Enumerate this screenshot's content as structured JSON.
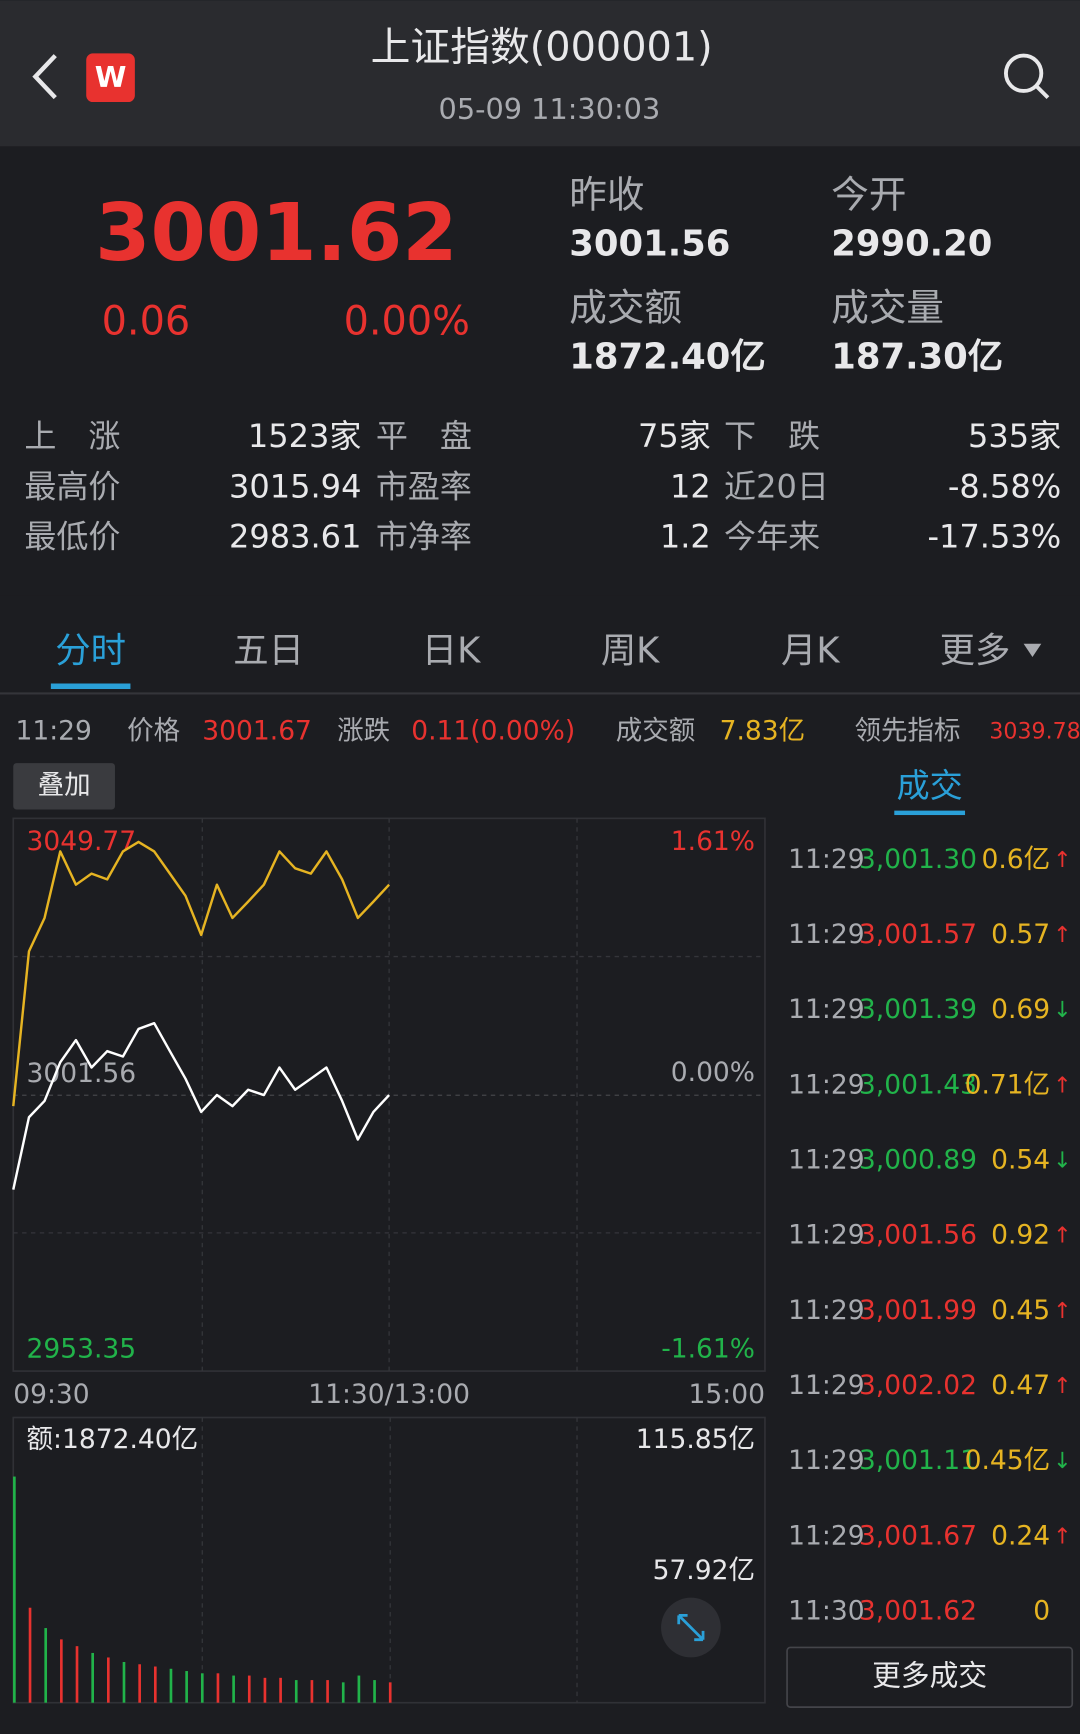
{
  "header": {
    "title": "上证指数(000001)",
    "time": "05-09 11:30:03"
  },
  "quote": {
    "price": "3001.62",
    "change": "0.06",
    "change_pct": "0.00%",
    "stats": [
      {
        "label": "昨收",
        "value": "3001.56"
      },
      {
        "label": "今开",
        "value": "2990.20"
      },
      {
        "label": "成交额",
        "value": "1872.40亿"
      },
      {
        "label": "成交量",
        "value": "187.30亿"
      }
    ]
  },
  "breadth": [
    [
      "上　涨",
      "1523家",
      "平　盘",
      "75家",
      "下　跌",
      "535家"
    ],
    [
      "最高价",
      "3015.94",
      "市盈率",
      "12",
      "近20日",
      "-8.58%"
    ],
    [
      "最低价",
      "2983.61",
      "市净率",
      "1.2",
      "今年来",
      "-17.53%"
    ]
  ],
  "tabs": [
    "分时",
    "五日",
    "日K",
    "周K",
    "月K",
    "更多"
  ],
  "crosshair": {
    "time": "11:29",
    "price_label": "价格",
    "price": "3001.67",
    "change_label": "涨跌",
    "change": "0.11(0.00%)",
    "amount_label": "成交额",
    "amount": "7.83亿",
    "lead_label": "领先指标",
    "lead": "3039.78"
  },
  "overlay_button": "叠加",
  "chart": {
    "type": "line",
    "ylim": [
      2953.35,
      3049.77
    ],
    "prev_close": 3001.56,
    "pct_labels": [
      "1.61%",
      "0.00%",
      "-1.61%"
    ],
    "xlim": [
      0,
      240
    ],
    "xticks": [
      {
        "value": 0,
        "label": "09:30"
      },
      {
        "value": 120,
        "label": "11:30/13:00"
      },
      {
        "value": 240,
        "label": "15:00"
      }
    ],
    "minutes": [
      0,
      5,
      10,
      15,
      20,
      25,
      30,
      35,
      40,
      45,
      50,
      55,
      60,
      65,
      70,
      75,
      80,
      85,
      90,
      95,
      100,
      105,
      110,
      115,
      120
    ],
    "series": [
      {
        "name": "价格",
        "color": "#ffffff",
        "values": [
          2983.7,
          2997.4,
          3000.5,
          3007.8,
          3012.0,
          3006.8,
          3009.9,
          3008.9,
          3014.1,
          3015.2,
          3009.9,
          3004.7,
          2998.4,
          3001.6,
          2999.5,
          3002.6,
          3001.6,
          3006.8,
          3002.6,
          3004.7,
          3006.8,
          3000.5,
          2993.2,
          2998.4,
          3001.6
        ]
      },
      {
        "name": "领先指标",
        "color": "#e6b422",
        "values": [
          2999.5,
          3028.8,
          3035.1,
          3047.7,
          3041.4,
          3043.5,
          3042.4,
          3047.7,
          3049.5,
          3047.7,
          3043.5,
          3039.3,
          3031.9,
          3041.4,
          3035.1,
          3038.2,
          3041.4,
          3047.7,
          3044.5,
          3043.5,
          3047.7,
          3042.4,
          3035.1,
          3038.2,
          3041.4
        ]
      }
    ],
    "volume_label": "额:1872.40亿",
    "vlim": [
      0,
      115.85
    ],
    "vticks": [
      {
        "value": 115.85,
        "label": "115.85亿"
      },
      {
        "value": 57.92,
        "label": "57.92亿"
      }
    ],
    "volume": [
      100,
      42,
      33,
      28,
      25,
      22,
      20,
      18,
      17,
      16,
      15,
      14,
      13,
      13,
      12,
      12,
      11,
      11,
      10,
      10,
      10,
      9,
      12,
      10,
      9
    ],
    "volume_colors": [
      "#21b34a",
      "#e8322f",
      "#21b34a",
      "#e8322f",
      "#e8322f",
      "#21b34a",
      "#e8322f",
      "#21b34a",
      "#e8322f",
      "#e8322f",
      "#21b34a",
      "#21b34a",
      "#21b34a",
      "#e8322f",
      "#21b34a",
      "#e8322f",
      "#e8322f",
      "#e8322f",
      "#21b34a",
      "#e8322f",
      "#e8322f",
      "#21b34a",
      "#21b34a",
      "#21b34a",
      "#e8322f"
    ]
  },
  "trades": {
    "title": "成交",
    "more": "更多成交",
    "rows": [
      {
        "time": "11:29",
        "price": "3,001.30",
        "color": "#21b34a",
        "volume": "0.6亿",
        "arrow": "↑"
      },
      {
        "time": "11:29",
        "price": "3,001.57",
        "color": "#e8322f",
        "volume": "0.57",
        "arrow": "↑"
      },
      {
        "time": "11:29",
        "price": "3,001.39",
        "color": "#21b34a",
        "volume": "0.69",
        "arrow": "↓"
      },
      {
        "time": "11:29",
        "price": "3,001.43",
        "color": "#21b34a",
        "volume": "0.71亿",
        "arrow": "↑"
      },
      {
        "time": "11:29",
        "price": "3,000.89",
        "color": "#21b34a",
        "volume": "0.54",
        "arrow": "↓"
      },
      {
        "time": "11:29",
        "price": "3,001.56",
        "color": "#e8322f",
        "volume": "0.92",
        "arrow": "↑"
      },
      {
        "time": "11:29",
        "price": "3,001.99",
        "color": "#e8322f",
        "volume": "0.45",
        "arrow": "↑"
      },
      {
        "time": "11:29",
        "price": "3,002.02",
        "color": "#e8322f",
        "volume": "0.47",
        "arrow": "↑"
      },
      {
        "time": "11:29",
        "price": "3,001.11",
        "color": "#21b34a",
        "volume": "0.45亿",
        "arrow": "↓"
      },
      {
        "time": "11:29",
        "price": "3,001.67",
        "color": "#e8322f",
        "volume": "0.24",
        "arrow": "↑"
      },
      {
        "time": "11:30",
        "price": "3,001.62",
        "color": "#e8322f",
        "volume": "0"
      }
    ]
  }
}
